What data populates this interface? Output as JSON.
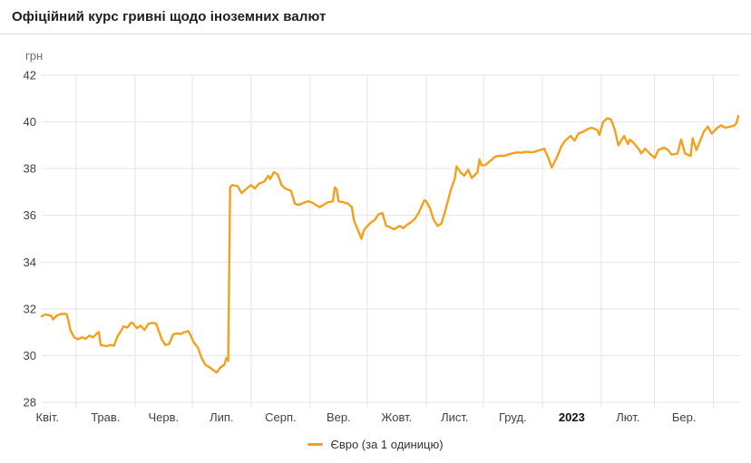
{
  "header": {
    "title": "Офіційний курс гривні щодо іноземних валют"
  },
  "chart_data": {
    "type": "line",
    "title": "Офіційний курс гривні щодо іноземних валют",
    "ylabel": "грн",
    "ylim": [
      28,
      42
    ],
    "y_ticks": [
      28,
      30,
      32,
      34,
      36,
      38,
      40,
      42
    ],
    "grid": true,
    "legend_position": "bottom",
    "x_ticks": [
      {
        "label": "Квіт.",
        "month": "2022-04"
      },
      {
        "label": "Трав.",
        "month": "2022-05"
      },
      {
        "label": "Черв.",
        "month": "2022-06"
      },
      {
        "label": "Лип.",
        "month": "2022-07"
      },
      {
        "label": "Серп.",
        "month": "2022-08"
      },
      {
        "label": "Вер.",
        "month": "2022-09"
      },
      {
        "label": "Жовт.",
        "month": "2022-10"
      },
      {
        "label": "Лист.",
        "month": "2022-11"
      },
      {
        "label": "Груд.",
        "month": "2022-12"
      },
      {
        "label": "2023",
        "month": "2023-01",
        "bold": true
      },
      {
        "label": "Лют.",
        "month": "2023-02"
      },
      {
        "label": "Бер.",
        "month": "2023-03"
      }
    ],
    "series": [
      {
        "name": "Євро (за 1 одиницю)",
        "color": "#f4a01d",
        "points": [
          [
            "2022-04-13",
            31.68
          ],
          [
            "2022-04-15",
            31.76
          ],
          [
            "2022-04-18",
            31.7
          ],
          [
            "2022-04-19",
            31.55
          ],
          [
            "2022-04-21",
            31.72
          ],
          [
            "2022-04-23",
            31.78
          ],
          [
            "2022-04-26",
            31.78
          ],
          [
            "2022-04-27",
            31.5
          ],
          [
            "2022-04-28",
            31.1
          ],
          [
            "2022-04-30",
            30.78
          ],
          [
            "2022-05-02",
            30.7
          ],
          [
            "2022-05-04",
            30.78
          ],
          [
            "2022-05-06",
            30.72
          ],
          [
            "2022-05-08",
            30.85
          ],
          [
            "2022-05-10",
            30.78
          ],
          [
            "2022-05-12",
            30.95
          ],
          [
            "2022-05-13",
            31.0
          ],
          [
            "2022-05-14",
            30.45
          ],
          [
            "2022-05-17",
            30.4
          ],
          [
            "2022-05-19",
            30.45
          ],
          [
            "2022-05-21",
            30.42
          ],
          [
            "2022-05-23",
            30.85
          ],
          [
            "2022-05-25",
            31.1
          ],
          [
            "2022-05-26",
            31.25
          ],
          [
            "2022-05-28",
            31.2
          ],
          [
            "2022-05-30",
            31.42
          ],
          [
            "2022-05-31",
            31.38
          ],
          [
            "2022-06-02",
            31.17
          ],
          [
            "2022-06-04",
            31.28
          ],
          [
            "2022-06-06",
            31.1
          ],
          [
            "2022-06-08",
            31.35
          ],
          [
            "2022-06-10",
            31.4
          ],
          [
            "2022-06-12",
            31.37
          ],
          [
            "2022-06-14",
            30.95
          ],
          [
            "2022-06-15",
            30.7
          ],
          [
            "2022-06-17",
            30.45
          ],
          [
            "2022-06-19",
            30.5
          ],
          [
            "2022-06-21",
            30.9
          ],
          [
            "2022-06-23",
            30.95
          ],
          [
            "2022-06-25",
            30.92
          ],
          [
            "2022-06-27",
            31.0
          ],
          [
            "2022-06-29",
            31.05
          ],
          [
            "2022-06-30",
            30.9
          ],
          [
            "2022-07-02",
            30.55
          ],
          [
            "2022-07-04",
            30.35
          ],
          [
            "2022-07-06",
            29.9
          ],
          [
            "2022-07-08",
            29.6
          ],
          [
            "2022-07-11",
            29.45
          ],
          [
            "2022-07-13",
            29.32
          ],
          [
            "2022-07-14",
            29.28
          ],
          [
            "2022-07-16",
            29.5
          ],
          [
            "2022-07-18",
            29.6
          ],
          [
            "2022-07-19",
            29.9
          ],
          [
            "2022-07-20",
            29.78
          ],
          [
            "2022-07-21",
            37.19
          ],
          [
            "2022-07-22",
            37.3
          ],
          [
            "2022-07-25",
            37.25
          ],
          [
            "2022-07-27",
            36.95
          ],
          [
            "2022-07-29",
            37.1
          ],
          [
            "2022-08-01",
            37.3
          ],
          [
            "2022-08-03",
            37.15
          ],
          [
            "2022-08-05",
            37.35
          ],
          [
            "2022-08-08",
            37.45
          ],
          [
            "2022-08-10",
            37.7
          ],
          [
            "2022-08-11",
            37.55
          ],
          [
            "2022-08-13",
            37.85
          ],
          [
            "2022-08-15",
            37.75
          ],
          [
            "2022-08-17",
            37.3
          ],
          [
            "2022-08-19",
            37.15
          ],
          [
            "2022-08-22",
            37.05
          ],
          [
            "2022-08-24",
            36.5
          ],
          [
            "2022-08-26",
            36.45
          ],
          [
            "2022-08-29",
            36.55
          ],
          [
            "2022-08-31",
            36.6
          ],
          [
            "2022-09-02",
            36.55
          ],
          [
            "2022-09-06",
            36.35
          ],
          [
            "2022-09-08",
            36.45
          ],
          [
            "2022-09-10",
            36.55
          ],
          [
            "2022-09-13",
            36.6
          ],
          [
            "2022-09-14",
            37.2
          ],
          [
            "2022-09-15",
            37.1
          ],
          [
            "2022-09-16",
            36.6
          ],
          [
            "2022-09-19",
            36.55
          ],
          [
            "2022-09-21",
            36.5
          ],
          [
            "2022-09-23",
            36.35
          ],
          [
            "2022-09-24",
            35.8
          ],
          [
            "2022-09-27",
            35.2
          ],
          [
            "2022-09-28",
            35.0
          ],
          [
            "2022-09-29",
            35.3
          ],
          [
            "2022-09-30",
            35.45
          ],
          [
            "2022-10-03",
            35.7
          ],
          [
            "2022-10-05",
            35.8
          ],
          [
            "2022-10-07",
            36.05
          ],
          [
            "2022-10-09",
            36.1
          ],
          [
            "2022-10-11",
            35.55
          ],
          [
            "2022-10-13",
            35.5
          ],
          [
            "2022-10-15",
            35.4
          ],
          [
            "2022-10-18",
            35.55
          ],
          [
            "2022-10-20",
            35.45
          ],
          [
            "2022-10-22",
            35.6
          ],
          [
            "2022-10-24",
            35.7
          ],
          [
            "2022-10-26",
            35.85
          ],
          [
            "2022-10-28",
            36.1
          ],
          [
            "2022-10-31",
            36.65
          ],
          [
            "2022-11-01",
            36.6
          ],
          [
            "2022-11-03",
            36.3
          ],
          [
            "2022-11-05",
            35.8
          ],
          [
            "2022-11-07",
            35.55
          ],
          [
            "2022-11-09",
            35.65
          ],
          [
            "2022-11-11",
            36.2
          ],
          [
            "2022-11-14",
            37.1
          ],
          [
            "2022-11-16",
            37.55
          ],
          [
            "2022-11-17",
            38.1
          ],
          [
            "2022-11-19",
            37.85
          ],
          [
            "2022-11-21",
            37.7
          ],
          [
            "2022-11-23",
            37.95
          ],
          [
            "2022-11-25",
            37.6
          ],
          [
            "2022-11-28",
            37.85
          ],
          [
            "2022-11-29",
            38.4
          ],
          [
            "2022-11-30",
            38.15
          ],
          [
            "2022-12-02",
            38.15
          ],
          [
            "2022-12-05",
            38.35
          ],
          [
            "2022-12-07",
            38.5
          ],
          [
            "2022-12-09",
            38.55
          ],
          [
            "2022-12-12",
            38.55
          ],
          [
            "2022-12-14",
            38.6
          ],
          [
            "2022-12-16",
            38.65
          ],
          [
            "2022-12-19",
            38.7
          ],
          [
            "2022-12-21",
            38.68
          ],
          [
            "2022-12-23",
            38.72
          ],
          [
            "2022-12-27",
            38.7
          ],
          [
            "2022-12-29",
            38.75
          ],
          [
            "2022-12-31",
            38.8
          ],
          [
            "2023-01-02",
            38.85
          ],
          [
            "2023-01-04",
            38.5
          ],
          [
            "2023-01-06",
            38.05
          ],
          [
            "2023-01-09",
            38.55
          ],
          [
            "2023-01-11",
            38.95
          ],
          [
            "2023-01-13",
            39.2
          ],
          [
            "2023-01-16",
            39.4
          ],
          [
            "2023-01-18",
            39.2
          ],
          [
            "2023-01-20",
            39.5
          ],
          [
            "2023-01-23",
            39.6
          ],
          [
            "2023-01-25",
            39.7
          ],
          [
            "2023-01-27",
            39.75
          ],
          [
            "2023-01-30",
            39.65
          ],
          [
            "2023-01-31",
            39.45
          ],
          [
            "2023-02-02",
            40.0
          ],
          [
            "2023-02-04",
            40.15
          ],
          [
            "2023-02-06",
            40.12
          ],
          [
            "2023-02-08",
            39.7
          ],
          [
            "2023-02-10",
            39.0
          ],
          [
            "2023-02-13",
            39.4
          ],
          [
            "2023-02-15",
            39.05
          ],
          [
            "2023-02-16",
            39.25
          ],
          [
            "2023-02-18",
            39.1
          ],
          [
            "2023-02-21",
            38.8
          ],
          [
            "2023-02-22",
            38.65
          ],
          [
            "2023-02-24",
            38.85
          ],
          [
            "2023-02-27",
            38.6
          ],
          [
            "2023-02-28",
            38.55
          ],
          [
            "2023-03-01",
            38.45
          ],
          [
            "2023-03-03",
            38.8
          ],
          [
            "2023-03-06",
            38.9
          ],
          [
            "2023-03-08",
            38.8
          ],
          [
            "2023-03-10",
            38.6
          ],
          [
            "2023-03-13",
            38.65
          ],
          [
            "2023-03-15",
            39.25
          ],
          [
            "2023-03-17",
            38.65
          ],
          [
            "2023-03-20",
            38.55
          ],
          [
            "2023-03-21",
            39.3
          ],
          [
            "2023-03-23",
            38.8
          ],
          [
            "2023-03-24",
            39.0
          ],
          [
            "2023-03-27",
            39.6
          ],
          [
            "2023-03-29",
            39.8
          ],
          [
            "2023-03-31",
            39.5
          ],
          [
            "2023-04-03",
            39.75
          ],
          [
            "2023-04-05",
            39.85
          ],
          [
            "2023-04-07",
            39.75
          ],
          [
            "2023-04-10",
            39.8
          ],
          [
            "2023-04-12",
            39.85
          ],
          [
            "2023-04-13",
            39.95
          ],
          [
            "2023-04-14",
            40.25
          ]
        ]
      }
    ]
  }
}
